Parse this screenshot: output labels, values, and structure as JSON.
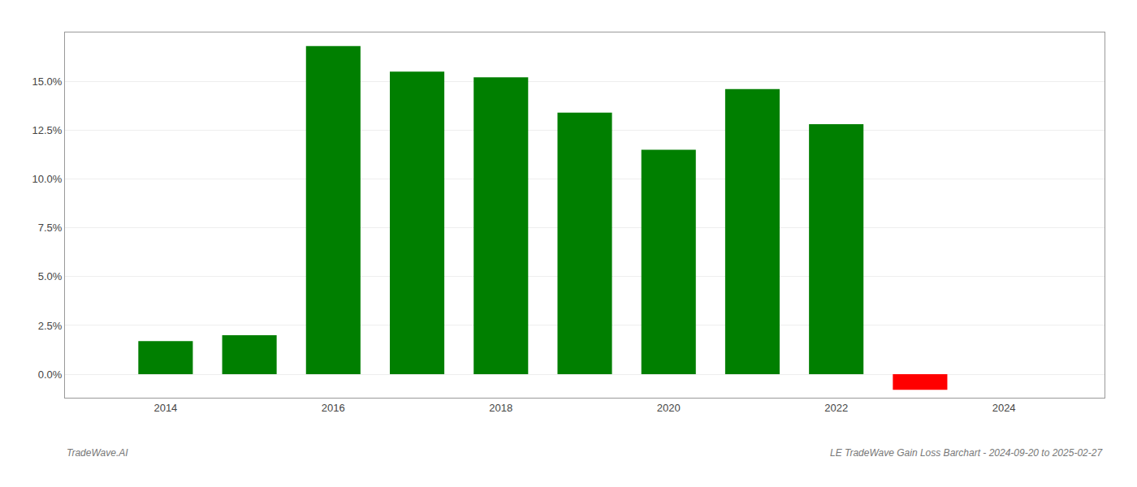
{
  "chart_data": {
    "type": "bar",
    "x": [
      2014,
      2015,
      2016,
      2017,
      2018,
      2019,
      2020,
      2021,
      2022,
      2023
    ],
    "values": [
      0.017,
      0.02,
      0.168,
      0.155,
      0.152,
      0.134,
      0.115,
      0.146,
      0.128,
      -0.008
    ],
    "colors": [
      "#007f00",
      "#007f00",
      "#007f00",
      "#007f00",
      "#007f00",
      "#007f00",
      "#007f00",
      "#007f00",
      "#007f00",
      "#ff0000"
    ],
    "xlim": [
      2012.8,
      2025.2
    ],
    "xticks": [
      2014,
      2016,
      2018,
      2020,
      2022,
      2024
    ],
    "ylim": [
      -0.012,
      0.175
    ],
    "yticks": [
      {
        "value": 0.0,
        "label": "0.0%"
      },
      {
        "value": 0.025,
        "label": "2.5%"
      },
      {
        "value": 0.05,
        "label": "5.0%"
      },
      {
        "value": 0.075,
        "label": "7.5%"
      },
      {
        "value": 0.1,
        "label": "10.0%"
      },
      {
        "value": 0.125,
        "label": "12.5%"
      },
      {
        "value": 0.15,
        "label": "15.0%"
      }
    ],
    "grid": true,
    "annotations": [
      "TradeWave.AI",
      "LE TradeWave Gain Loss Barchart - 2024-09-20 to 2025-02-27"
    ]
  }
}
